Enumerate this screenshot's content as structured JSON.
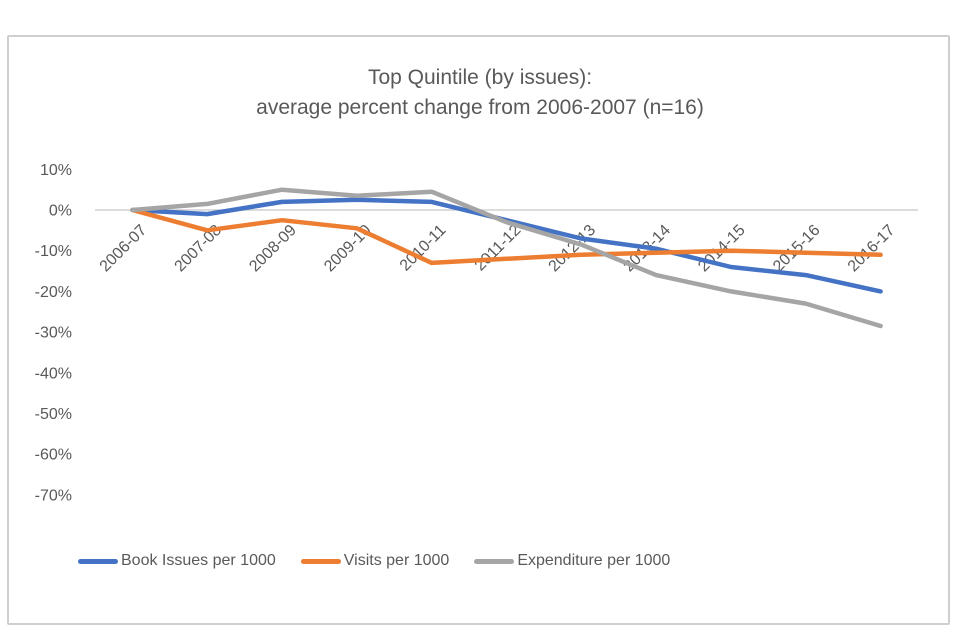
{
  "chart": {
    "title_line1": "Top Quintile (by issues):",
    "title_line2": "average percent change from 2006-2007 (n=16)"
  },
  "colors": {
    "frame_border": "#cfcfcf",
    "gridline": "#c6c6c6",
    "text": "#595959",
    "series_blue": "#4472C4",
    "series_orange": "#ED7D31",
    "series_gray": "#A5A5A5"
  },
  "chart_data": {
    "type": "line",
    "title": "Top Quintile (by issues): average percent change from 2006-2007 (n=16)",
    "xlabel": "",
    "ylabel": "",
    "value_format": "percent",
    "ylim": [
      -70,
      10
    ],
    "grid": "horizontal zero-line only",
    "legend_position": "bottom",
    "y_ticks": [
      "10%",
      "0%",
      "-10%",
      "-20%",
      "-30%",
      "-40%",
      "-50%",
      "-60%",
      "-70%"
    ],
    "categories": [
      "2006-07",
      "2007-08",
      "2008-09",
      "2009-10",
      "2010-11",
      "2011-12",
      "2012-13",
      "2013-14",
      "2014-15",
      "2015-16",
      "2016-17"
    ],
    "series": [
      {
        "name": "Book Issues per 1000",
        "color": "#4472C4",
        "values": [
          0,
          -1,
          2,
          2.5,
          2,
          -2.5,
          -7,
          -9.5,
          -14,
          -16,
          -20
        ]
      },
      {
        "name": "Visits per 1000",
        "color": "#ED7D31",
        "values": [
          0,
          -5,
          -2.5,
          -4.5,
          -13,
          -12,
          -11,
          -10.5,
          -10,
          -10.5,
          -11
        ]
      },
      {
        "name": "Expenditure per 1000",
        "color": "#A5A5A5",
        "values": [
          0,
          1.5,
          5,
          3.5,
          4.5,
          -3,
          -8.5,
          -16,
          -20,
          -23,
          -28.5
        ]
      }
    ]
  }
}
